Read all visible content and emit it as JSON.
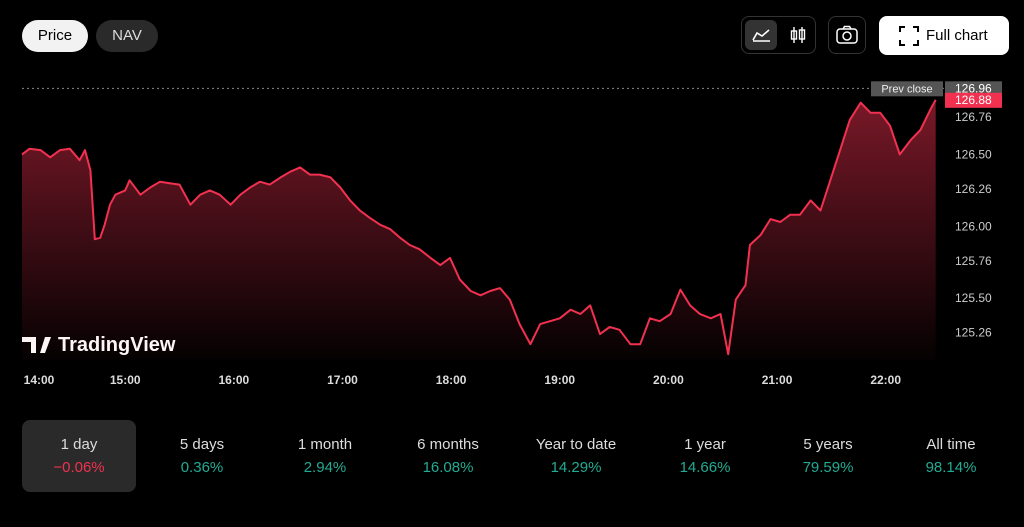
{
  "tabs": [
    "Price",
    "NAV"
  ],
  "full_chart": "Full chart",
  "chart_data": {
    "type": "line",
    "watermark": "TradingView",
    "series": [
      {
        "name": "Price",
        "color": "#f23150",
        "x": [
          14.05,
          14.12,
          14.22,
          14.31,
          14.4,
          14.49,
          14.58,
          14.63,
          14.68,
          14.72,
          14.77,
          14.81,
          14.86,
          14.91,
          15.0,
          15.04,
          15.14,
          15.23,
          15.32,
          15.41,
          15.5,
          15.6,
          15.69,
          15.78,
          15.87,
          15.97,
          16.06,
          16.15,
          16.24,
          16.33,
          16.43,
          16.52,
          16.61,
          16.7,
          16.79,
          16.89,
          16.98,
          17.07,
          17.16,
          17.25,
          17.35,
          17.44,
          17.53,
          17.62,
          17.71,
          17.81,
          17.9,
          17.99,
          18.08,
          18.18,
          18.27,
          18.36,
          18.45,
          18.54,
          18.63,
          18.73,
          18.82,
          18.91,
          19.0,
          19.1,
          19.19,
          19.28,
          19.37,
          19.46,
          19.55,
          19.65,
          19.74,
          19.83,
          19.92,
          20.02,
          20.11,
          20.2,
          20.29,
          20.39,
          20.48,
          20.55,
          20.62,
          20.71,
          20.75,
          20.85,
          20.94,
          21.03,
          21.12,
          21.21,
          21.31,
          21.4,
          21.49,
          21.58,
          21.67,
          21.77,
          21.86,
          21.95,
          22.04,
          22.13,
          22.23,
          22.32,
          22.41,
          22.46
        ],
        "values": [
          126.5,
          126.54,
          126.53,
          126.48,
          126.53,
          126.54,
          126.46,
          126.53,
          126.39,
          125.91,
          125.92,
          126.01,
          126.15,
          126.22,
          126.25,
          126.32,
          126.22,
          126.27,
          126.31,
          126.3,
          126.29,
          126.15,
          126.22,
          126.25,
          126.22,
          126.15,
          126.22,
          126.27,
          126.31,
          126.29,
          126.34,
          126.38,
          126.41,
          126.36,
          126.36,
          126.34,
          126.27,
          126.18,
          126.11,
          126.06,
          126.01,
          125.98,
          125.92,
          125.87,
          125.84,
          125.78,
          125.73,
          125.78,
          125.63,
          125.55,
          125.52,
          125.55,
          125.57,
          125.49,
          125.32,
          125.18,
          125.32,
          125.34,
          125.36,
          125.42,
          125.39,
          125.45,
          125.25,
          125.3,
          125.28,
          125.18,
          125.18,
          125.36,
          125.34,
          125.39,
          125.56,
          125.45,
          125.39,
          125.36,
          125.39,
          125.11,
          125.49,
          125.59,
          125.87,
          125.94,
          126.05,
          126.03,
          126.08,
          126.08,
          126.18,
          126.11,
          126.32,
          126.53,
          126.74,
          126.86,
          126.79,
          126.79,
          126.7,
          126.5,
          126.6,
          126.67,
          126.81,
          126.88
        ]
      }
    ],
    "xlim": [
      14.05,
      22.5
    ],
    "xticks": [
      {
        "value": 14,
        "label": "14:00"
      },
      {
        "value": 15,
        "label": "15:00"
      },
      {
        "value": 16,
        "label": "16:00"
      },
      {
        "value": 17,
        "label": "17:00"
      },
      {
        "value": 18,
        "label": "18:00"
      },
      {
        "value": 19,
        "label": "19:00"
      },
      {
        "value": 20,
        "label": "20:00"
      },
      {
        "value": 21,
        "label": "21:00"
      },
      {
        "value": 22,
        "label": "22:00"
      }
    ],
    "ylim": [
      125.07,
      126.99
    ],
    "yticks": [
      125.26,
      {
        "value": 125.5,
        "label": "125.50"
      },
      125.76,
      {
        "value": 126,
        "label": "126.00"
      },
      126.26,
      {
        "value": 126.5,
        "label": "126.50"
      },
      126.76
    ],
    "prev_close_label": "Prev close",
    "prev_close": 126.96
  },
  "periods": [
    {
      "label": "1 day",
      "change": "−0.06%",
      "selected": true,
      "negative": true
    },
    {
      "label": "5 days",
      "change": "0.36%"
    },
    {
      "label": "1 month",
      "change": "2.94%"
    },
    {
      "label": "6 months",
      "change": "16.08%"
    },
    {
      "label": "Year to date",
      "change": "14.29%"
    },
    {
      "label": "1 year",
      "change": "14.66%"
    },
    {
      "label": "5 years",
      "change": "79.59%"
    },
    {
      "label": "All time",
      "change": "98.14%"
    }
  ]
}
